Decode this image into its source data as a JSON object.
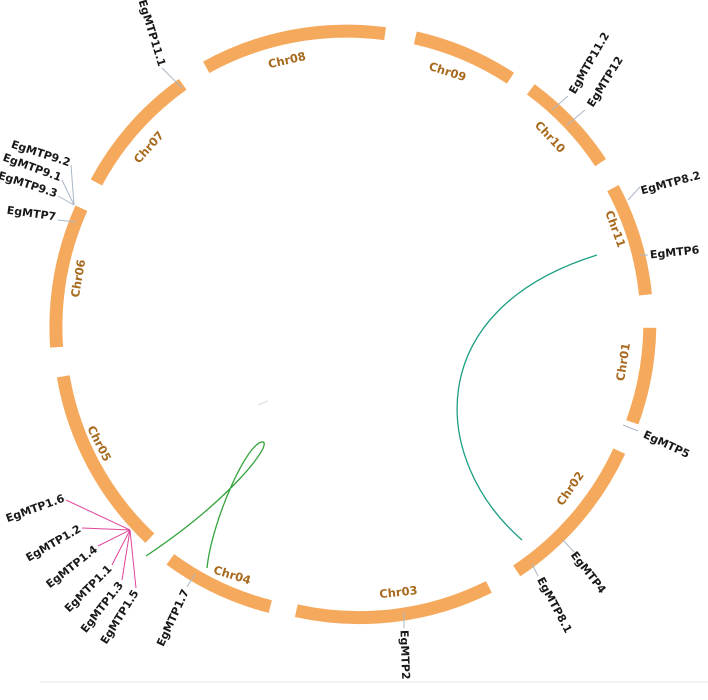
{
  "colors": {
    "chromosome": "#f5a95c",
    "chromosome_label": "#a86a1e",
    "gene_tick": "#a9b7c6",
    "link_tandem": "#e0449a",
    "link_segmental_green": "#34a33c",
    "link_segmental_teal": "#1e9e84"
  },
  "chromosomes": [
    {
      "id": "chr01",
      "label": "Chr01"
    },
    {
      "id": "chr02",
      "label": "Chr02"
    },
    {
      "id": "chr03",
      "label": "Chr03"
    },
    {
      "id": "chr04",
      "label": "Chr04"
    },
    {
      "id": "chr05",
      "label": "Chr05"
    },
    {
      "id": "chr06",
      "label": "Chr06"
    },
    {
      "id": "chr07",
      "label": "Chr07"
    },
    {
      "id": "chr08",
      "label": "Chr08"
    },
    {
      "id": "chr09",
      "label": "Chr09"
    },
    {
      "id": "chr10",
      "label": "Chr10"
    },
    {
      "id": "chr11",
      "label": "Chr11"
    }
  ],
  "genes": [
    {
      "id": "mtp11_1",
      "label": "EgMTP11.1",
      "chr": "Chr07"
    },
    {
      "id": "mtp11_2",
      "label": "EgMTP11.2",
      "chr": "Chr10"
    },
    {
      "id": "mtp12",
      "label": "EgMTP12",
      "chr": "Chr10"
    },
    {
      "id": "mtp8_2",
      "label": "EgMTP8.2",
      "chr": "Chr11"
    },
    {
      "id": "mtp6",
      "label": "EgMTP6",
      "chr": "Chr11"
    },
    {
      "id": "mtp5",
      "label": "EgMTP5",
      "chr": "Chr01"
    },
    {
      "id": "mtp4",
      "label": "EgMTP4",
      "chr": "Chr02"
    },
    {
      "id": "mtp8_1",
      "label": "EgMTP8.1",
      "chr": "Chr02"
    },
    {
      "id": "mtp2",
      "label": "EgMTP2",
      "chr": "Chr03"
    },
    {
      "id": "mtp1_7",
      "label": "EgMTP1.7",
      "chr": "Chr04"
    },
    {
      "id": "mtp1_6",
      "label": "EgMTP1.6",
      "chr": "Chr05"
    },
    {
      "id": "mtp1_2",
      "label": "EgMTP1.2",
      "chr": "Chr05"
    },
    {
      "id": "mtp1_4",
      "label": "EgMTP1.4",
      "chr": "Chr05"
    },
    {
      "id": "mtp1_1",
      "label": "EgMTP1.1",
      "chr": "Chr05"
    },
    {
      "id": "mtp1_3",
      "label": "EgMTP1.3",
      "chr": "Chr05"
    },
    {
      "id": "mtp1_5",
      "label": "EgMTP1.5",
      "chr": "Chr05"
    },
    {
      "id": "mtp9_2",
      "label": "EgMTP9.2",
      "chr": "Chr06"
    },
    {
      "id": "mtp9_1",
      "label": "EgMTP9.1",
      "chr": "Chr06"
    },
    {
      "id": "mtp9_3",
      "label": "EgMTP9.3",
      "chr": "Chr06"
    },
    {
      "id": "mtp7",
      "label": "EgMTP7",
      "chr": "Chr06"
    }
  ],
  "links": [
    {
      "from": "Chr11",
      "to": "Chr02",
      "color": "teal"
    },
    {
      "from": "Chr05",
      "to": "Chr04",
      "color": "green"
    },
    {
      "from": "EgMTP1.6",
      "to": "EgMTP1.5",
      "color": "tandem"
    }
  ]
}
